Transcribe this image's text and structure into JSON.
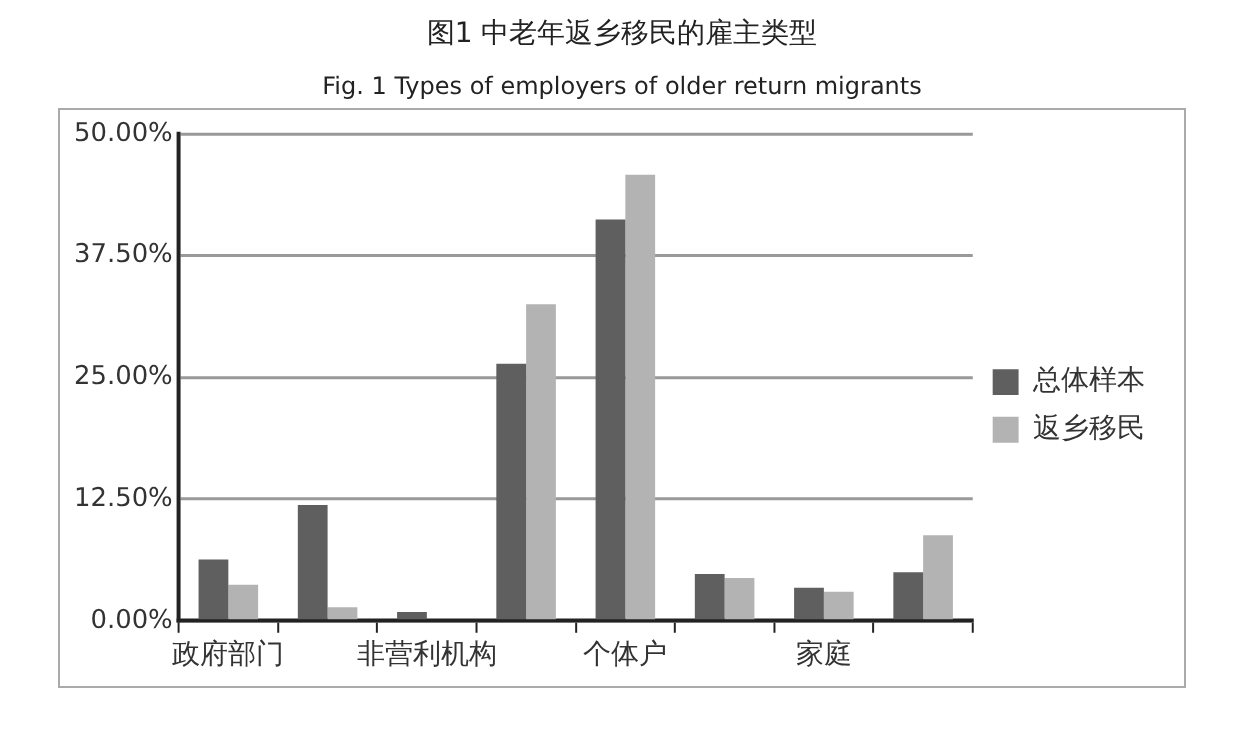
{
  "chart_data": {
    "type": "bar",
    "title": "图1 中老年返乡移民的雇主类型",
    "subtitle": "Fig. 1 Types of employers of older return migrants",
    "categories": [
      "政府部门",
      null,
      "非营利机构",
      null,
      "个体户",
      null,
      "家庭",
      null
    ],
    "series": [
      {
        "name": "总体样本",
        "color": "#5f5f5f",
        "values": [
          6.3,
          11.9,
          0.9,
          26.4,
          41.2,
          4.8,
          3.4,
          5.0
        ]
      },
      {
        "name": "返乡移民",
        "color": "#b3b3b3",
        "values": [
          3.7,
          1.4,
          0,
          32.5,
          45.8,
          4.4,
          3.0,
          8.8
        ]
      }
    ],
    "ylim": [
      0,
      50
    ],
    "yticks": [
      {
        "value": 0,
        "label": "0.00%"
      },
      {
        "value": 12.5,
        "label": "12.50%"
      },
      {
        "value": 25,
        "label": "25.00%"
      },
      {
        "value": 37.5,
        "label": "37.50%"
      },
      {
        "value": 50,
        "label": "50.00%"
      }
    ],
    "grid": "y",
    "legend": "right"
  }
}
